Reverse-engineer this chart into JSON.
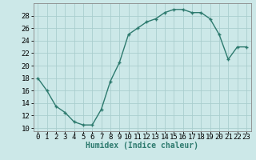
{
  "x": [
    0,
    1,
    2,
    3,
    4,
    5,
    6,
    7,
    8,
    9,
    10,
    11,
    12,
    13,
    14,
    15,
    16,
    17,
    18,
    19,
    20,
    21,
    22,
    23
  ],
  "y": [
    18,
    16,
    13.5,
    12.5,
    11,
    10.5,
    10.5,
    13,
    17.5,
    20.5,
    25,
    26,
    27,
    27.5,
    28.5,
    29,
    29,
    28.5,
    28.5,
    27.5,
    25,
    21,
    23,
    23
  ],
  "line_color": "#2d7a6e",
  "marker": "+",
  "bg_color": "#cce8e8",
  "grid_color": "#aacece",
  "xlabel": "Humidex (Indice chaleur)",
  "xlim": [
    -0.5,
    23.5
  ],
  "ylim": [
    9.5,
    30
  ],
  "yticks": [
    10,
    12,
    14,
    16,
    18,
    20,
    22,
    24,
    26,
    28
  ],
  "xticks": [
    0,
    1,
    2,
    3,
    4,
    5,
    6,
    7,
    8,
    9,
    10,
    11,
    12,
    13,
    14,
    15,
    16,
    17,
    18,
    19,
    20,
    21,
    22,
    23
  ],
  "xlabel_fontsize": 7,
  "tick_fontsize": 6.5,
  "linewidth": 1.0,
  "markersize": 3.5,
  "markeredgewidth": 1.0
}
